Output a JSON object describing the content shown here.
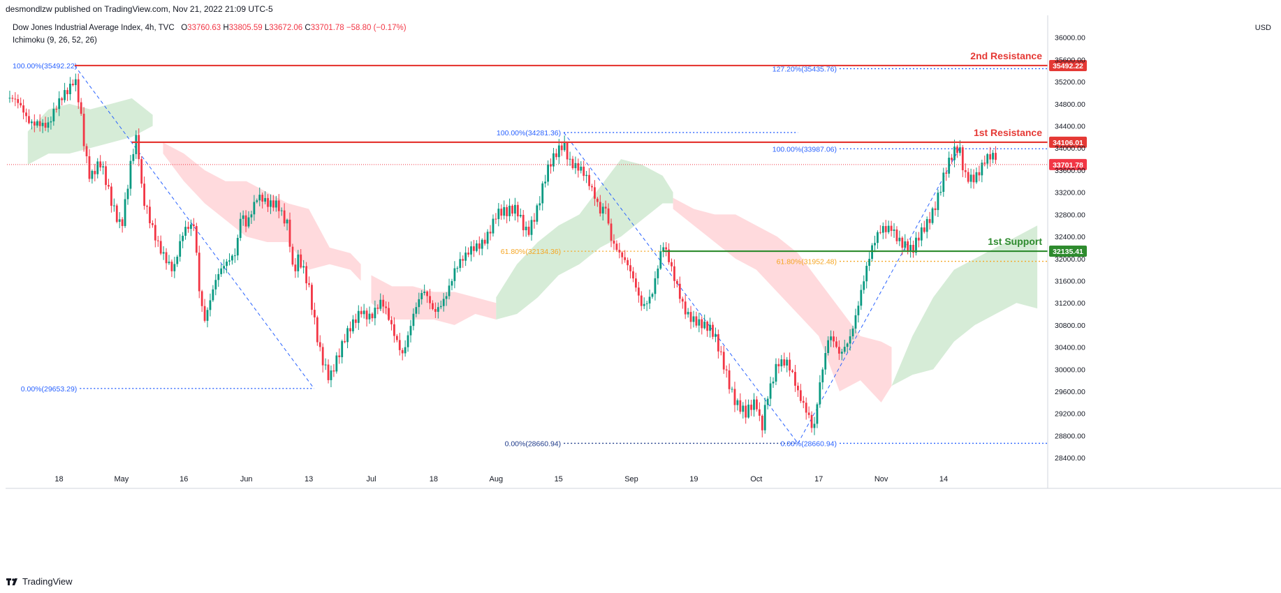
{
  "header": {
    "publisher_line": "desmondlzw published on TradingView.com, Nov 21, 2022 21:09 UTC-5"
  },
  "legend": {
    "symbol": "Dow Jones Industrial Average Index, 4h, TVC",
    "open_label": "O",
    "open": "33760.63",
    "high_label": "H",
    "high": "33805.59",
    "low_label": "L",
    "low": "33672.06",
    "close_label": "C",
    "close": "33701.78",
    "change": "−58.80 (−0.17%)",
    "indicator": "Ichimoku (9, 26, 52, 26)"
  },
  "currency": "USD",
  "footer": {
    "brand": "TradingView",
    "logo_icon": "tradingview-logo-icon"
  },
  "colors": {
    "up": "#089981",
    "down": "#f23645",
    "fib": "#2962ff",
    "fib_gold": "#f5a623",
    "support": "#2e8b2e",
    "resistance": "#e53935",
    "cloud_green": "#c8e6c9",
    "cloud_red": "#ffcdd2"
  },
  "chart_data": {
    "type": "candlestick",
    "title": "",
    "ylim": [
      28200,
      36400
    ],
    "y_ticks": [
      28400,
      28800,
      29200,
      29600,
      30000,
      30400,
      30800,
      31200,
      31600,
      32000,
      32400,
      32800,
      33200,
      33600,
      34000,
      34400,
      34800,
      35200,
      35600,
      36000
    ],
    "y_tick_labels": [
      "28400.00",
      "28800.00",
      "29200.00",
      "29600.00",
      "30000.00",
      "30400.00",
      "30800.00",
      "31200.00",
      "31600.00",
      "32000.00",
      "32400.00",
      "32800.00",
      "33200.00",
      "33600.00",
      "34000.00",
      "34400.00",
      "34800.00",
      "35200.00",
      "35600.00",
      "36000.00"
    ],
    "x_labels": [
      "18",
      "May",
      "16",
      "Jun",
      "13",
      "Jul",
      "18",
      "Aug",
      "15",
      "Sep",
      "19",
      "Oct",
      "17",
      "Nov",
      "14"
    ],
    "x_label_t": [
      0.05,
      0.11,
      0.17,
      0.23,
      0.29,
      0.35,
      0.41,
      0.47,
      0.53,
      0.6,
      0.66,
      0.72,
      0.78,
      0.84,
      0.9
    ],
    "close_path": [
      [
        0,
        34900
      ],
      [
        0.01,
        34700
      ],
      [
        0.02,
        34500
      ],
      [
        0.03,
        34600
      ],
      [
        0.04,
        34400
      ],
      [
        0.05,
        34700
      ],
      [
        0.06,
        35100
      ],
      [
        0.065,
        35400
      ],
      [
        0.07,
        34900
      ],
      [
        0.075,
        34000
      ],
      [
        0.08,
        33400
      ],
      [
        0.09,
        33600
      ],
      [
        0.1,
        33100
      ],
      [
        0.11,
        32700
      ],
      [
        0.12,
        33800
      ],
      [
        0.125,
        34100
      ],
      [
        0.13,
        33000
      ],
      [
        0.14,
        32600
      ],
      [
        0.15,
        32200
      ],
      [
        0.16,
        31700
      ],
      [
        0.17,
        32400
      ],
      [
        0.18,
        32700
      ],
      [
        0.185,
        31500
      ],
      [
        0.19,
        31000
      ],
      [
        0.2,
        31500
      ],
      [
        0.21,
        31800
      ],
      [
        0.22,
        32200
      ],
      [
        0.225,
        33000
      ],
      [
        0.23,
        32700
      ],
      [
        0.24,
        33000
      ],
      [
        0.25,
        32900
      ],
      [
        0.26,
        33100
      ],
      [
        0.27,
        32700
      ],
      [
        0.275,
        31700
      ],
      [
        0.28,
        31900
      ],
      [
        0.29,
        31400
      ],
      [
        0.3,
        30500
      ],
      [
        0.31,
        29900
      ],
      [
        0.32,
        30200
      ],
      [
        0.33,
        30700
      ],
      [
        0.34,
        31200
      ],
      [
        0.35,
        31000
      ],
      [
        0.36,
        31100
      ],
      [
        0.37,
        30700
      ],
      [
        0.38,
        30400
      ],
      [
        0.39,
        31000
      ],
      [
        0.4,
        31300
      ],
      [
        0.41,
        31000
      ],
      [
        0.42,
        31400
      ],
      [
        0.43,
        31800
      ],
      [
        0.44,
        31900
      ],
      [
        0.45,
        32200
      ],
      [
        0.46,
        32500
      ],
      [
        0.47,
        32800
      ],
      [
        0.48,
        32700
      ],
      [
        0.49,
        32900
      ],
      [
        0.5,
        32600
      ],
      [
        0.51,
        32900
      ],
      [
        0.52,
        33500
      ],
      [
        0.53,
        34000
      ],
      [
        0.535,
        34200
      ],
      [
        0.54,
        33900
      ],
      [
        0.55,
        33600
      ],
      [
        0.56,
        33200
      ],
      [
        0.57,
        32900
      ],
      [
        0.575,
        33100
      ],
      [
        0.58,
        32500
      ],
      [
        0.59,
        32000
      ],
      [
        0.6,
        31600
      ],
      [
        0.61,
        31200
      ],
      [
        0.62,
        31500
      ],
      [
        0.63,
        32200
      ],
      [
        0.64,
        31600
      ],
      [
        0.65,
        31200
      ],
      [
        0.66,
        31000
      ],
      [
        0.67,
        30700
      ],
      [
        0.68,
        30500
      ],
      [
        0.69,
        30100
      ],
      [
        0.7,
        29500
      ],
      [
        0.71,
        29100
      ],
      [
        0.72,
        29300
      ],
      [
        0.725,
        28900
      ],
      [
        0.73,
        29600
      ],
      [
        0.74,
        30200
      ],
      [
        0.75,
        30000
      ],
      [
        0.76,
        29500
      ],
      [
        0.77,
        29300
      ],
      [
        0.775,
        29000
      ],
      [
        0.78,
        29700
      ],
      [
        0.79,
        30500
      ],
      [
        0.8,
        30200
      ],
      [
        0.81,
        30700
      ],
      [
        0.82,
        31400
      ],
      [
        0.83,
        32000
      ],
      [
        0.84,
        32500
      ],
      [
        0.85,
        32700
      ],
      [
        0.86,
        32300
      ],
      [
        0.87,
        32000
      ],
      [
        0.88,
        32500
      ],
      [
        0.89,
        33000
      ],
      [
        0.9,
        33500
      ],
      [
        0.91,
        33800
      ],
      [
        0.915,
        33900
      ],
      [
        0.92,
        33500
      ],
      [
        0.93,
        33600
      ],
      [
        0.94,
        33800
      ],
      [
        0.95,
        33700
      ]
    ],
    "cloud_segments": [
      {
        "kind": "green",
        "upper": [
          [
            0.02,
            34300
          ],
          [
            0.04,
            34700
          ],
          [
            0.06,
            34800
          ],
          [
            0.08,
            34700
          ],
          [
            0.1,
            34800
          ],
          [
            0.12,
            34900
          ],
          [
            0.14,
            34600
          ]
        ],
        "lower": [
          [
            0.02,
            33700
          ],
          [
            0.04,
            33900
          ],
          [
            0.06,
            33900
          ],
          [
            0.08,
            34000
          ],
          [
            0.1,
            34100
          ],
          [
            0.12,
            34200
          ],
          [
            0.14,
            34400
          ]
        ]
      },
      {
        "kind": "red",
        "upper": [
          [
            0.15,
            34100
          ],
          [
            0.17,
            33900
          ],
          [
            0.19,
            33600
          ],
          [
            0.21,
            33400
          ],
          [
            0.23,
            33400
          ],
          [
            0.25,
            33200
          ],
          [
            0.27,
            33000
          ],
          [
            0.29,
            32900
          ],
          [
            0.31,
            32200
          ],
          [
            0.33,
            32100
          ],
          [
            0.34,
            31900
          ]
        ],
        "lower": [
          [
            0.15,
            33900
          ],
          [
            0.17,
            33400
          ],
          [
            0.19,
            33000
          ],
          [
            0.21,
            32700
          ],
          [
            0.23,
            32400
          ],
          [
            0.25,
            32300
          ],
          [
            0.27,
            32300
          ],
          [
            0.29,
            31800
          ],
          [
            0.31,
            31900
          ],
          [
            0.33,
            31800
          ],
          [
            0.34,
            31600
          ]
        ]
      },
      {
        "kind": "red",
        "upper": [
          [
            0.35,
            31700
          ],
          [
            0.37,
            31500
          ],
          [
            0.39,
            31500
          ],
          [
            0.41,
            31400
          ],
          [
            0.43,
            31400
          ],
          [
            0.45,
            31300
          ],
          [
            0.47,
            31200
          ]
        ],
        "lower": [
          [
            0.35,
            31200
          ],
          [
            0.37,
            30900
          ],
          [
            0.39,
            30900
          ],
          [
            0.41,
            30900
          ],
          [
            0.43,
            30800
          ],
          [
            0.45,
            31000
          ],
          [
            0.47,
            30900
          ]
        ]
      },
      {
        "kind": "green",
        "upper": [
          [
            0.47,
            31300
          ],
          [
            0.49,
            31900
          ],
          [
            0.51,
            32300
          ],
          [
            0.53,
            32600
          ],
          [
            0.55,
            32800
          ],
          [
            0.57,
            33300
          ],
          [
            0.59,
            33800
          ],
          [
            0.61,
            33700
          ],
          [
            0.63,
            33500
          ],
          [
            0.64,
            33200
          ]
        ],
        "lower": [
          [
            0.47,
            30900
          ],
          [
            0.49,
            31000
          ],
          [
            0.51,
            31300
          ],
          [
            0.53,
            31700
          ],
          [
            0.55,
            31900
          ],
          [
            0.57,
            32200
          ],
          [
            0.59,
            32400
          ],
          [
            0.61,
            32700
          ],
          [
            0.63,
            33000
          ],
          [
            0.64,
            33000
          ]
        ]
      },
      {
        "kind": "red",
        "upper": [
          [
            0.64,
            33100
          ],
          [
            0.66,
            32900
          ],
          [
            0.68,
            32800
          ],
          [
            0.7,
            32800
          ],
          [
            0.72,
            32600
          ],
          [
            0.74,
            32400
          ],
          [
            0.76,
            32100
          ],
          [
            0.78,
            31600
          ],
          [
            0.8,
            31100
          ],
          [
            0.82,
            30600
          ],
          [
            0.84,
            30500
          ],
          [
            0.85,
            30400
          ]
        ],
        "lower": [
          [
            0.64,
            32900
          ],
          [
            0.66,
            32600
          ],
          [
            0.68,
            32300
          ],
          [
            0.7,
            32000
          ],
          [
            0.72,
            31800
          ],
          [
            0.74,
            31400
          ],
          [
            0.76,
            31000
          ],
          [
            0.78,
            30600
          ],
          [
            0.8,
            29600
          ],
          [
            0.82,
            29800
          ],
          [
            0.84,
            29400
          ],
          [
            0.85,
            29700
          ]
        ]
      },
      {
        "kind": "green",
        "upper": [
          [
            0.85,
            29700
          ],
          [
            0.87,
            30600
          ],
          [
            0.89,
            31300
          ],
          [
            0.91,
            31800
          ],
          [
            0.93,
            32000
          ],
          [
            0.95,
            32200
          ],
          [
            0.97,
            32400
          ],
          [
            0.99,
            32600
          ]
        ],
        "lower": [
          [
            0.85,
            29700
          ],
          [
            0.87,
            29900
          ],
          [
            0.89,
            30000
          ],
          [
            0.91,
            30500
          ],
          [
            0.93,
            30800
          ],
          [
            0.95,
            31000
          ],
          [
            0.97,
            31200
          ],
          [
            0.99,
            31100
          ]
        ]
      }
    ],
    "fib_retracements": [
      {
        "label": "100.00%(35492.22)",
        "t": 0.005,
        "y": 35492.22
      },
      {
        "label": "0.00%(29653.29)",
        "t": 0.005,
        "y": 29653.29
      },
      {
        "label": "100.00%(34281.36)",
        "t": 0.47,
        "y": 34281.36
      },
      {
        "label": "61.80%(32134.36)",
        "t": 0.47,
        "y": 32134.36
      },
      {
        "label": "0.00%(28660.94)",
        "t": 0.47,
        "y": 28660.94
      },
      {
        "label": "127.20%(35435.76)",
        "t": 0.7,
        "y": 35435.76
      },
      {
        "label": "100.00%(33987.06)",
        "t": 0.7,
        "y": 33987.06
      },
      {
        "label": "61.80%(31952.48)",
        "t": 0.7,
        "y": 31952.48
      },
      {
        "label": "0.00%(28660.94)",
        "t": 0.7,
        "y": 28660.94
      }
    ],
    "horizontal_levels": [
      {
        "name": "2nd Resistance",
        "value": 35492.22,
        "value_label": "35492.22",
        "kind": "resistance"
      },
      {
        "name": "1st Resistance",
        "value": 34106.01,
        "value_label": "34106.01",
        "kind": "resistance"
      },
      {
        "name": "1st Support",
        "value": 32135.41,
        "value_label": "32135.41",
        "kind": "support"
      }
    ],
    "last_price": {
      "value": 33701.78,
      "label": "33701.78"
    },
    "diagonals": [
      {
        "from": [
          0.065,
          35492.22
        ],
        "to": [
          0.295,
          29653.29
        ]
      },
      {
        "from": [
          0.535,
          34281.36
        ],
        "to": [
          0.76,
          28660.94
        ]
      },
      {
        "from": [
          0.76,
          28660.94
        ],
        "to": [
          0.915,
          33987.06
        ]
      }
    ]
  }
}
